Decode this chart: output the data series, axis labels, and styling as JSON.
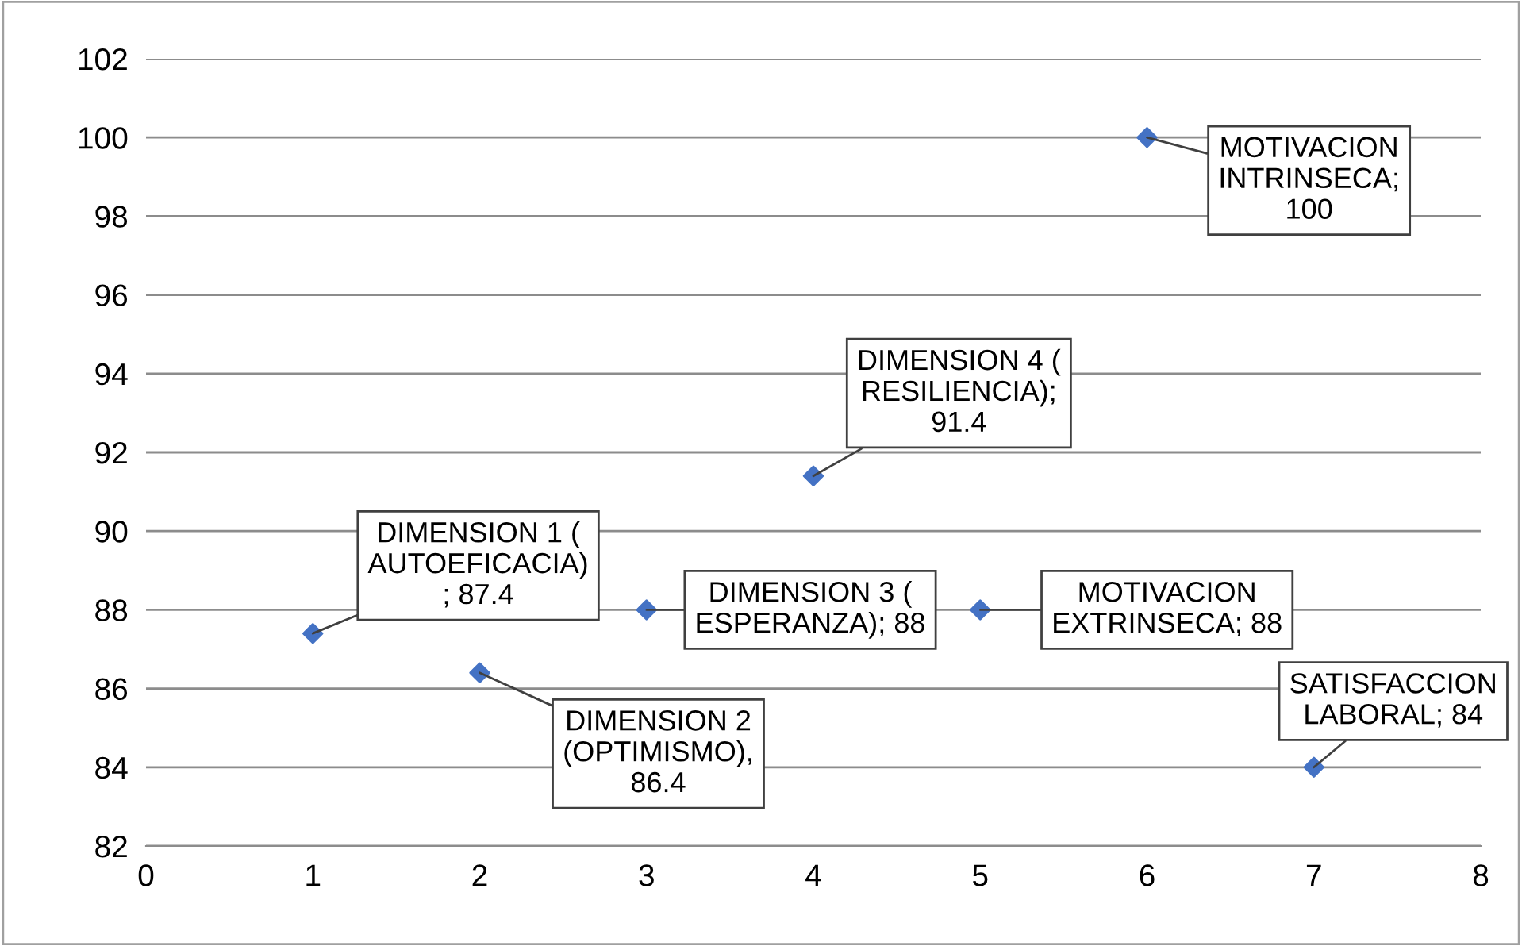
{
  "chart_data": {
    "type": "scatter",
    "x": [
      1,
      2,
      3,
      4,
      5,
      6,
      7
    ],
    "values": [
      87.4,
      86.4,
      88,
      91.4,
      88,
      100,
      84
    ],
    "color": "#4472c4",
    "marker": "diamond",
    "value_labels": [
      "DIMENSION 1 (\nAUTOEFICACIA)\n; 87.4",
      "DIMENSION 2\n(OPTIMISMO),\n86.4",
      "DIMENSION 3 (\nESPERANZA); 88",
      "DIMENSION 4 (\nRESILIENCIA);\n91.4",
      "MOTIVACION\nEXTRINSECA; 88",
      "MOTIVACION\nINTRINSECA;\n100",
      "SATISFACCION\nLABORAL; 84"
    ],
    "xlim": [
      0,
      8
    ],
    "xticks": [
      0,
      1,
      2,
      3,
      4,
      5,
      6,
      7,
      8
    ],
    "ylim": [
      82,
      102
    ],
    "yticks": [
      82,
      84,
      86,
      88,
      90,
      92,
      94,
      96,
      98,
      100,
      102
    ],
    "grid": "y"
  }
}
